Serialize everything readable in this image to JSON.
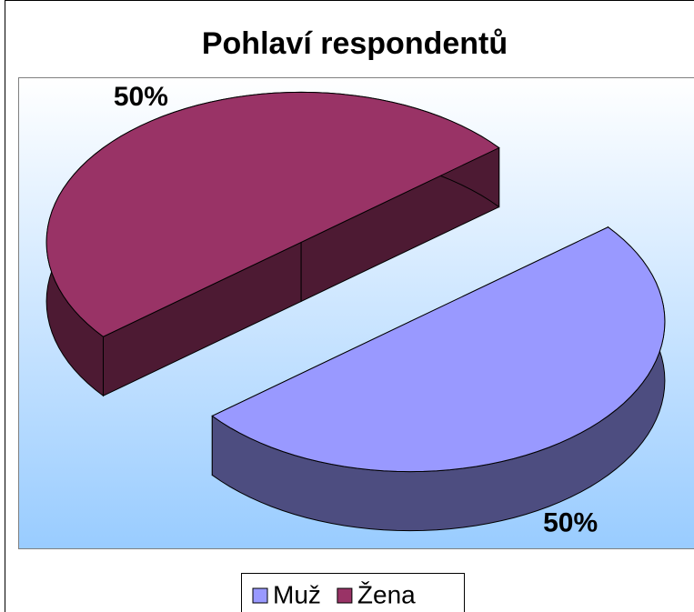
{
  "chart_data": {
    "type": "pie",
    "title": "Pohlaví respondentů",
    "categories": [
      "Muž",
      "Žena"
    ],
    "values": [
      50,
      50
    ],
    "value_labels": [
      "50%",
      "50%"
    ],
    "colors": [
      "#9999ff",
      "#993366"
    ],
    "legend": "bottom"
  }
}
